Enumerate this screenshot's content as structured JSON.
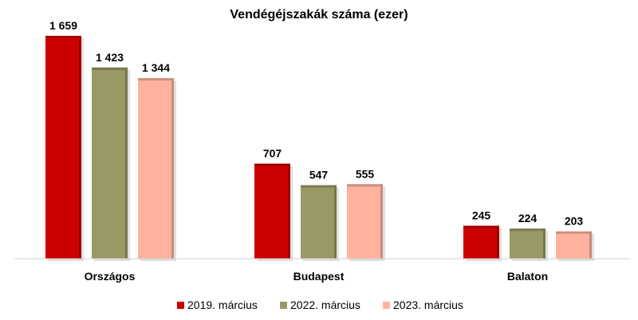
{
  "chart_data": {
    "type": "bar",
    "title": "Vendégéjszakák száma (ezer)",
    "xlabel": "",
    "ylabel": "",
    "categories": [
      "Országos",
      "Budapest",
      "Balaton"
    ],
    "series": [
      {
        "name": "2019. március",
        "values": [
          1659,
          707,
          245
        ],
        "labels": [
          "1 659",
          "707",
          "245"
        ],
        "color": "#cc0000"
      },
      {
        "name": "2022. március",
        "values": [
          1423,
          547,
          224
        ],
        "labels": [
          "1 423",
          "547",
          "224"
        ],
        "color": "#999966"
      },
      {
        "name": "2023. március",
        "values": [
          1344,
          555,
          203
        ],
        "labels": [
          "1 344",
          "555",
          "203"
        ],
        "color": "#ffb39e"
      }
    ],
    "ylim": [
      0,
      1659
    ],
    "grid": false,
    "legend_position": "bottom"
  }
}
